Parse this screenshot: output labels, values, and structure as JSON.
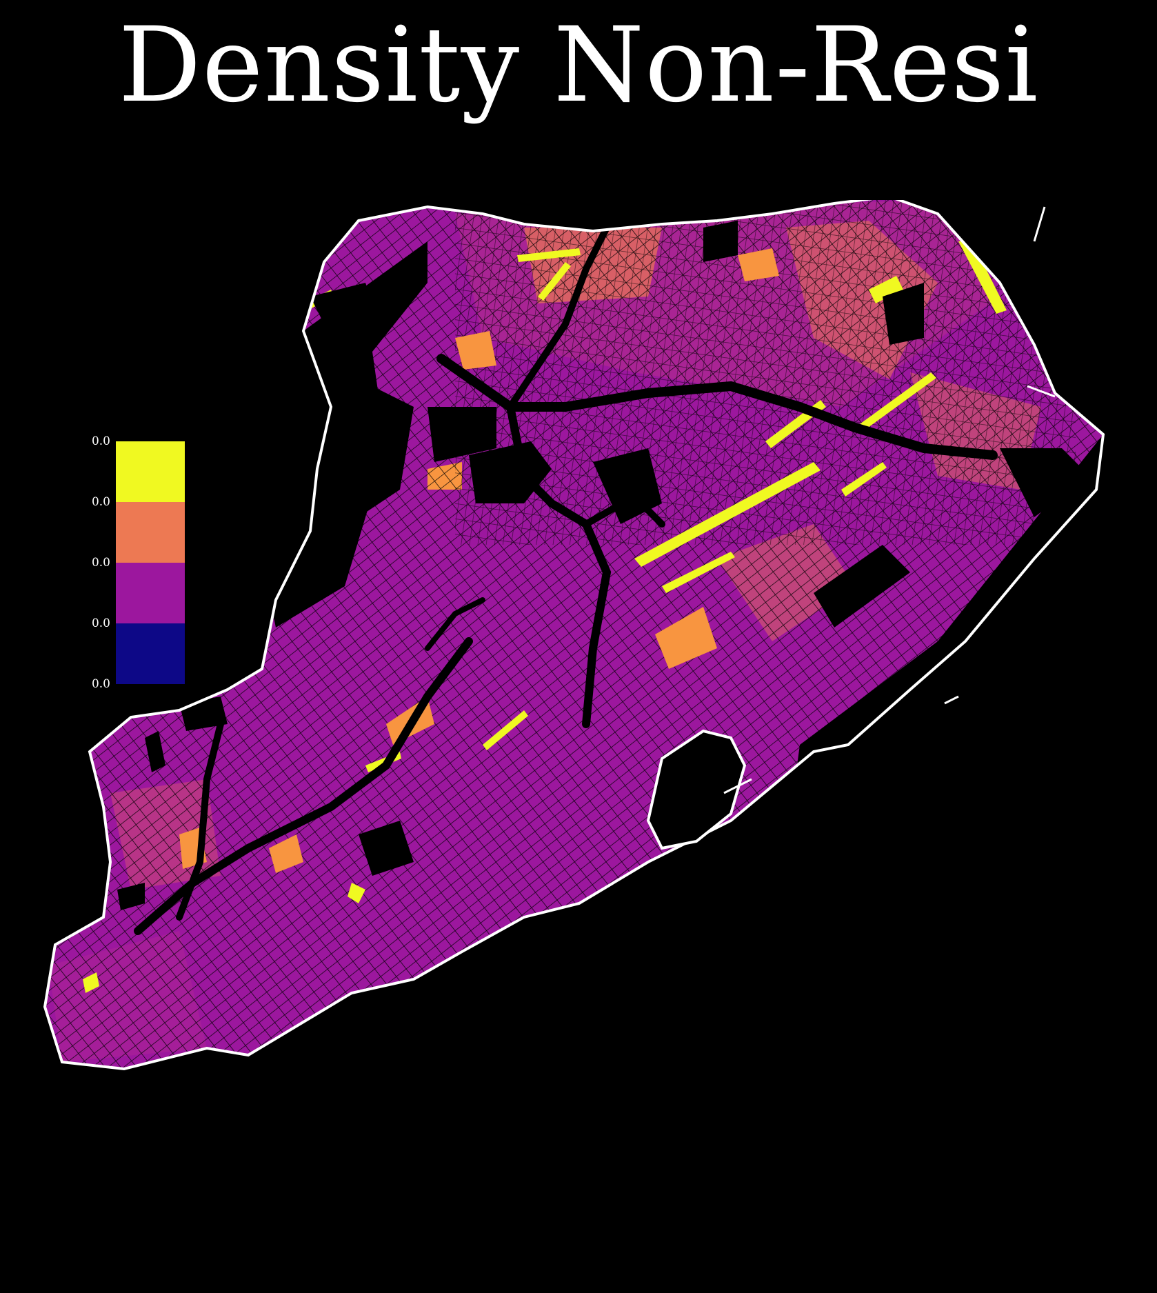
{
  "title": "Density Non-Resi",
  "legend": {
    "tick_labels": [
      "0.0",
      "0.0",
      "0.0",
      "0.0",
      "0.0"
    ],
    "bins": [
      {
        "color": "#f0f921"
      },
      {
        "color": "#ed7953"
      },
      {
        "color": "#9c179e"
      },
      {
        "color": "#0d0887"
      }
    ]
  },
  "map": {
    "background": "#000000",
    "outline_color": "#ffffff",
    "street_color": "#000000",
    "colormap": "plasma"
  }
}
